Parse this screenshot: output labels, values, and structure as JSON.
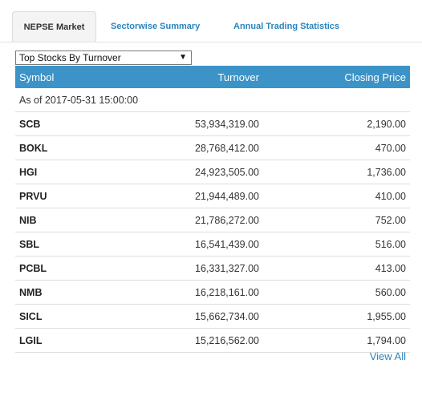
{
  "tabs": [
    {
      "label": "NEPSE Market"
    },
    {
      "label": "Sectorwise Summary"
    },
    {
      "label": "Annual Trading Statistics"
    }
  ],
  "dropdown": {
    "selected": "Top Stocks By Turnover",
    "arrow": "▼"
  },
  "table": {
    "headers": {
      "symbol": "Symbol",
      "turnover": "Turnover",
      "closing_price": "Closing Price"
    },
    "as_of": "As of 2017-05-31 15:00:00",
    "rows": [
      {
        "symbol": "SCB",
        "turnover": "53,934,319.00",
        "closing_price": "2,190.00"
      },
      {
        "symbol": "BOKL",
        "turnover": "28,768,412.00",
        "closing_price": "470.00"
      },
      {
        "symbol": "HGI",
        "turnover": "24,923,505.00",
        "closing_price": "1,736.00"
      },
      {
        "symbol": "PRVU",
        "turnover": "21,944,489.00",
        "closing_price": "410.00"
      },
      {
        "symbol": "NIB",
        "turnover": "21,786,272.00",
        "closing_price": "752.00"
      },
      {
        "symbol": "SBL",
        "turnover": "16,541,439.00",
        "closing_price": "516.00"
      },
      {
        "symbol": "PCBL",
        "turnover": "16,331,327.00",
        "closing_price": "413.00"
      },
      {
        "symbol": "NMB",
        "turnover": "16,218,161.00",
        "closing_price": "560.00"
      },
      {
        "symbol": "SICL",
        "turnover": "15,662,734.00",
        "closing_price": "1,955.00"
      },
      {
        "symbol": "LGIL",
        "turnover": "15,216,562.00",
        "closing_price": "1,794.00"
      }
    ]
  },
  "view_all_label": "View All",
  "colors": {
    "accent": "#3c93c7",
    "link": "#2b84bd"
  }
}
